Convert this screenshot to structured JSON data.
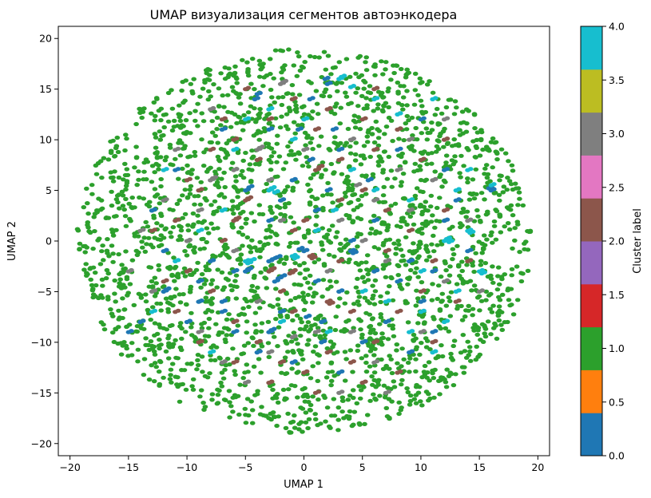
{
  "chart_data": {
    "type": "scatter",
    "title": "UMAP визуализация сегментов автоэнкодера",
    "xlabel": "UMAP 1",
    "ylabel": "UMAP 2",
    "xlim": [
      -21,
      21
    ],
    "ylim": [
      -21.2,
      21.2
    ],
    "xticks": [
      -20,
      -15,
      -10,
      -5,
      0,
      5,
      10,
      15,
      20
    ],
    "yticks": [
      -20,
      -15,
      -10,
      -5,
      0,
      5,
      10,
      15,
      20
    ],
    "grid": false,
    "colorbar": {
      "label": "Cluster label",
      "ticks": [
        0.0,
        0.5,
        1.0,
        1.5,
        2.0,
        2.5,
        3.0,
        3.5,
        4.0
      ],
      "tick_labels": [
        "0.0",
        "0.5",
        "1.0",
        "1.5",
        "2.0",
        "2.5",
        "3.0",
        "3.5",
        "4.0"
      ],
      "range": [
        0,
        4
      ],
      "colors": [
        "#1f77b4",
        "#ff7f0e",
        "#2ca02c",
        "#d62728",
        "#9467bd",
        "#8c564b",
        "#e377c2",
        "#7f7f7f",
        "#bcbd22",
        "#17becf"
      ]
    },
    "series": [
      {
        "cluster": 0,
        "color": "#1f77b4",
        "points": [
          [
            -2.5,
            -4
          ],
          [
            -2.2,
            -3.7
          ],
          [
            -1.9,
            -3.5
          ],
          [
            -3,
            -2
          ],
          [
            -2.7,
            -1.8
          ],
          [
            -2.3,
            -1.6
          ],
          [
            0,
            -1
          ],
          [
            -0.4,
            -0.8
          ],
          [
            1.5,
            -8
          ],
          [
            0.2,
            -7.5
          ],
          [
            -2,
            -7
          ],
          [
            -5,
            -3
          ],
          [
            -4.8,
            -2.8
          ],
          [
            -9,
            -4
          ],
          [
            -8,
            -2
          ],
          [
            -12,
            -5
          ],
          [
            -11.8,
            -4.8
          ],
          [
            -9,
            -6
          ],
          [
            2,
            15.5
          ],
          [
            1.8,
            16
          ],
          [
            0.5,
            14
          ],
          [
            -4,
            14.5
          ],
          [
            -4.2,
            14
          ],
          [
            -3,
            11
          ],
          [
            2.5,
            11
          ],
          [
            -7,
            11
          ],
          [
            -5,
            5
          ],
          [
            -4.7,
            5.3
          ],
          [
            -2,
            4
          ],
          [
            1,
            3
          ],
          [
            6,
            2
          ],
          [
            9,
            -2
          ],
          [
            8,
            -4
          ],
          [
            10,
            -6
          ],
          [
            11,
            -3
          ],
          [
            12,
            2
          ],
          [
            13,
            4
          ],
          [
            16,
            5
          ],
          [
            15.8,
            5.2
          ],
          [
            -11,
            7
          ],
          [
            -13,
            3
          ],
          [
            -12,
            -1
          ],
          [
            -14,
            -8
          ],
          [
            -7,
            -6
          ],
          [
            -6,
            -9
          ],
          [
            -4,
            -11
          ],
          [
            -1,
            -12
          ],
          [
            3,
            -13
          ],
          [
            5,
            -10
          ],
          [
            7,
            -8
          ],
          [
            9,
            -11
          ],
          [
            11,
            -9
          ],
          [
            4,
            0
          ],
          [
            1,
            -4
          ],
          [
            3,
            -5
          ],
          [
            6,
            -3
          ],
          [
            -1,
            6
          ],
          [
            0.5,
            8
          ],
          [
            3,
            9
          ],
          [
            -6,
            -3
          ],
          [
            -7,
            -7
          ],
          [
            1.5,
            -10
          ],
          [
            -3,
            -9
          ],
          [
            -2.8,
            -8.8
          ],
          [
            5.5,
            6
          ],
          [
            8,
            9
          ],
          [
            10,
            12
          ],
          [
            12,
            7
          ],
          [
            4,
            -1
          ],
          [
            4.2,
            -1.2
          ],
          [
            -3,
            2
          ],
          [
            2,
            5
          ],
          [
            -0.5,
            11
          ],
          [
            -10,
            -8
          ],
          [
            14,
            -1
          ],
          [
            -15,
            -9
          ]
        ]
      },
      {
        "cluster": 1,
        "color": "#2ca02c",
        "random": true,
        "count": 2600,
        "radius": 19.4,
        "seed": 7
      },
      {
        "cluster": 2,
        "color": "#8c564b",
        "points": [
          [
            -5,
            4
          ],
          [
            -4.8,
            4.2
          ],
          [
            -6,
            2
          ],
          [
            -5.8,
            2.2
          ],
          [
            -3,
            -3
          ],
          [
            -2.8,
            -2.8
          ],
          [
            0.5,
            -1.5
          ],
          [
            0.7,
            -1.7
          ],
          [
            -2,
            -5
          ],
          [
            -1,
            -7
          ],
          [
            2,
            -6
          ],
          [
            2.2,
            -6.2
          ],
          [
            4,
            -7
          ],
          [
            1,
            7
          ],
          [
            1.3,
            7.3
          ],
          [
            3,
            8
          ],
          [
            0,
            2
          ],
          [
            -1,
            1
          ],
          [
            -7,
            0
          ],
          [
            -9,
            5
          ],
          [
            -11,
            2
          ],
          [
            -10,
            -3
          ],
          [
            -8,
            -5
          ],
          [
            -6,
            -8
          ],
          [
            -4,
            -10
          ],
          [
            -2,
            -12
          ],
          [
            0,
            -13
          ],
          [
            2,
            -11
          ],
          [
            4,
            -12
          ],
          [
            6,
            -10
          ],
          [
            8,
            -7
          ],
          [
            10,
            -5
          ],
          [
            11,
            -2
          ],
          [
            9,
            1
          ],
          [
            7,
            3
          ],
          [
            5,
            5
          ],
          [
            3,
            4
          ],
          [
            6,
            9
          ],
          [
            8,
            11
          ],
          [
            5,
            12
          ],
          [
            2,
            13
          ],
          [
            -1,
            14
          ],
          [
            -3,
            12
          ],
          [
            -6,
            10
          ],
          [
            -8,
            9
          ],
          [
            -10,
            6
          ],
          [
            -12,
            -4
          ],
          [
            -11,
            -7
          ],
          [
            -9,
            -10
          ],
          [
            -6,
            -12
          ],
          [
            -3,
            -14
          ],
          [
            1,
            -15
          ],
          [
            5,
            -14
          ],
          [
            8,
            -13
          ],
          [
            11,
            -10
          ],
          [
            13,
            -6
          ],
          [
            14,
            -2
          ],
          [
            12,
            3
          ],
          [
            -5,
            15
          ],
          [
            6,
            15
          ],
          [
            -1,
            -3
          ],
          [
            -1.2,
            -3.2
          ],
          [
            1,
            11
          ],
          [
            -4,
            8
          ],
          [
            7,
            -1
          ],
          [
            10,
            8
          ],
          [
            12,
            10
          ],
          [
            -13,
            1
          ],
          [
            -7,
            12
          ],
          [
            3,
            -2
          ]
        ]
      },
      {
        "cluster": 3,
        "color": "#7f7f7f",
        "points": [
          [
            -4,
            9
          ],
          [
            -3.8,
            9.2
          ],
          [
            -8,
            6
          ],
          [
            -7.8,
            6.2
          ],
          [
            -2,
            15.5
          ],
          [
            -1.8,
            15.7
          ],
          [
            3,
            2
          ],
          [
            5,
            0
          ],
          [
            7,
            -2
          ],
          [
            9,
            3
          ],
          [
            -10,
            0
          ],
          [
            -12,
            4
          ],
          [
            -14,
            1
          ],
          [
            -9,
            -9
          ],
          [
            -7,
            -12
          ],
          [
            -3,
            -11
          ],
          [
            1,
            -9
          ],
          [
            4,
            -9
          ],
          [
            6,
            -12
          ],
          [
            10,
            -9
          ],
          [
            12,
            -4
          ],
          [
            14,
            2
          ],
          [
            11,
            6
          ],
          [
            8,
            7
          ],
          [
            4,
            10
          ],
          [
            0,
            9
          ],
          [
            -3,
            6
          ],
          [
            -6,
            7
          ],
          [
            -11,
            9
          ],
          [
            -13,
            -5
          ],
          [
            -6,
            -1
          ],
          [
            -4,
            -6
          ],
          [
            2,
            -3
          ],
          [
            6,
            4
          ],
          [
            9,
            10
          ],
          [
            12,
            12
          ],
          [
            -8,
            13
          ],
          [
            -5,
            -14
          ],
          [
            3,
            -15
          ],
          [
            7,
            -15
          ],
          [
            -2,
            2
          ],
          [
            -15,
            -3
          ],
          [
            15,
            -5
          ],
          [
            4.5,
            5.5
          ],
          [
            -9,
            3
          ],
          [
            -1,
            -9.5
          ]
        ]
      },
      {
        "cluster": 4,
        "color": "#17becf",
        "points": [
          [
            3,
            16
          ],
          [
            3.2,
            16.2
          ],
          [
            4,
            15.2
          ],
          [
            6,
            14
          ],
          [
            8,
            12.5
          ],
          [
            -3,
            5
          ],
          [
            -2.8,
            5.2
          ],
          [
            -2.5,
            4.8
          ],
          [
            -5,
            -2
          ],
          [
            -4.8,
            -2.2
          ],
          [
            -4.5,
            -1.9
          ],
          [
            -1,
            -1.5
          ],
          [
            -0.8,
            -1.7
          ],
          [
            12,
            0
          ],
          [
            12.2,
            0.2
          ],
          [
            12.4,
            -0.1
          ],
          [
            14,
            1
          ],
          [
            14.2,
            0.8
          ],
          [
            15,
            -3
          ],
          [
            15.2,
            -3.2
          ],
          [
            13,
            -5
          ],
          [
            10,
            -7
          ],
          [
            11,
            -11
          ],
          [
            9,
            -9
          ],
          [
            7,
            -6
          ],
          [
            -2,
            -8
          ],
          [
            -7,
            3
          ],
          [
            -9,
            1
          ],
          [
            -11,
            -2
          ],
          [
            -6,
            9
          ],
          [
            -3,
            13
          ],
          [
            0,
            12
          ],
          [
            4,
            7
          ],
          [
            6,
            5
          ],
          [
            9,
            4
          ],
          [
            10,
            -3
          ],
          [
            13,
            5
          ],
          [
            14,
            7
          ],
          [
            16,
            5.5
          ],
          [
            -13,
            -7
          ],
          [
            -8,
            -11
          ],
          [
            2,
            -9
          ],
          [
            5,
            -5
          ],
          [
            -12,
            7
          ],
          [
            1,
            1
          ],
          [
            2.5,
            3
          ],
          [
            11,
            14
          ],
          [
            -5,
            12
          ],
          [
            12,
            -8
          ],
          [
            -1,
            10
          ]
        ]
      }
    ]
  }
}
